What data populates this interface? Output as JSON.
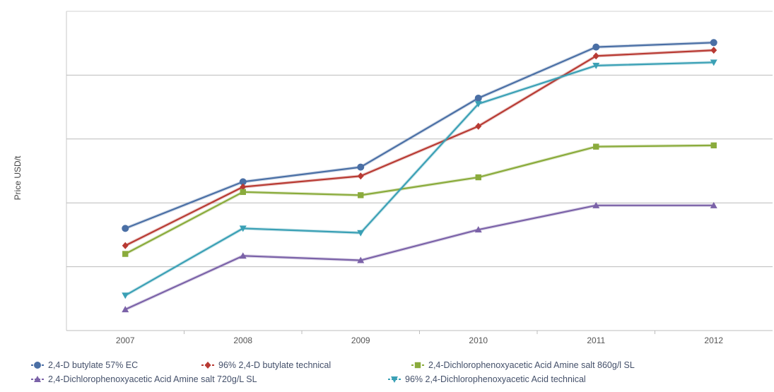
{
  "chart_data": {
    "type": "line",
    "title": "",
    "xlabel": "",
    "ylabel": "Price USD/t",
    "categories": [
      "2007",
      "2008",
      "2009",
      "2010",
      "2011",
      "2012"
    ],
    "ylim": [
      0,
      5
    ],
    "y_ticks_labeled": false,
    "grid": "horizontal",
    "legend_position": "bottom",
    "series": [
      {
        "name": "2,4-D butylate 57% EC",
        "color": "#4a6fa5",
        "marker": "circle",
        "values": [
          1.6,
          2.33,
          2.56,
          3.64,
          4.44,
          4.51
        ]
      },
      {
        "name": "96% 2,4-D butylate technical",
        "color": "#b83a33",
        "marker": "diamond",
        "values": [
          1.33,
          2.25,
          2.42,
          3.2,
          4.3,
          4.39
        ]
      },
      {
        "name": "2,4-Dichlorophenoxyacetic Acid Amine salt 860g/l SL",
        "color": "#8aab3c",
        "marker": "square",
        "values": [
          1.2,
          2.17,
          2.12,
          2.4,
          2.88,
          2.9
        ]
      },
      {
        "name": "2,4-Dichlorophenoxyacetic Acid Amine salt 720g/L SL",
        "color": "#7b62a8",
        "marker": "triangle-up",
        "values": [
          0.33,
          1.17,
          1.1,
          1.58,
          1.96,
          1.96
        ]
      },
      {
        "name": "96% 2,4-Dichlorophenoxyacetic Acid technical",
        "color": "#3aa0b5",
        "marker": "triangle-down",
        "values": [
          0.55,
          1.6,
          1.53,
          3.55,
          4.15,
          4.2
        ]
      }
    ]
  }
}
